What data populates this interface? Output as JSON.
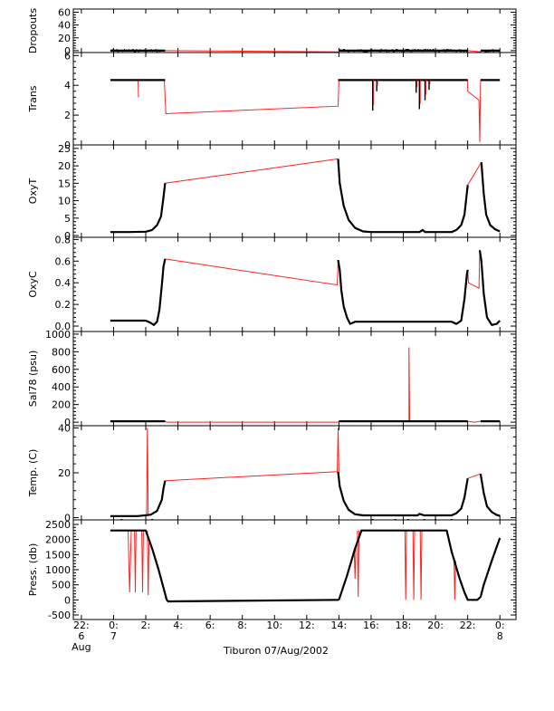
{
  "caption": "Tiburon 07/Aug/2002",
  "time_axis": {
    "ticks": [
      {
        "hour": -2,
        "line1": "22:",
        "line2": "6",
        "line3": "Aug"
      },
      {
        "hour": 0,
        "line1": "0:",
        "line2": "7",
        "line3": ""
      },
      {
        "hour": 2,
        "line1": "2:",
        "line2": "",
        "line3": ""
      },
      {
        "hour": 4,
        "line1": "4:",
        "line2": "",
        "line3": ""
      },
      {
        "hour": 6,
        "line1": "6:",
        "line2": "",
        "line3": ""
      },
      {
        "hour": 8,
        "line1": "8:",
        "line2": "",
        "line3": ""
      },
      {
        "hour": 10,
        "line1": "10:",
        "line2": "",
        "line3": ""
      },
      {
        "hour": 12,
        "line1": "12:",
        "line2": "",
        "line3": ""
      },
      {
        "hour": 14,
        "line1": "14:",
        "line2": "",
        "line3": ""
      },
      {
        "hour": 16,
        "line1": "16:",
        "line2": "",
        "line3": ""
      },
      {
        "hour": 18,
        "line1": "18:",
        "line2": "",
        "line3": ""
      },
      {
        "hour": 20,
        "line1": "20:",
        "line2": "",
        "line3": ""
      },
      {
        "hour": 22,
        "line1": "22:",
        "line2": "",
        "line3": ""
      },
      {
        "hour": 24,
        "line1": "0:",
        "line2": "8",
        "line3": ""
      }
    ]
  },
  "chart_data": [
    {
      "type": "line",
      "ylabel": "Dropouts",
      "ylim": [
        -3,
        65
      ],
      "yticks": [
        {
          "v": 60,
          "t": "60"
        },
        {
          "v": 40,
          "t": "40"
        },
        {
          "v": 20,
          "t": "20"
        },
        {
          "v": 0,
          "t": "0"
        }
      ],
      "black": [
        [
          [
            -0.2,
            0
          ],
          [
            3.2,
            0
          ]
        ],
        [
          [
            14.0,
            0
          ],
          [
            22.0,
            0
          ]
        ],
        [
          [
            22.8,
            0
          ],
          [
            24.0,
            0
          ]
        ]
      ],
      "red": [
        [
          [
            3.2,
            0
          ],
          [
            14.0,
            -2
          ]
        ],
        [
          [
            22.0,
            0
          ],
          [
            22.8,
            -2
          ]
        ]
      ],
      "noise": true
    },
    {
      "type": "line",
      "ylabel": "Trans",
      "ylim": [
        0,
        6.2
      ],
      "yticks": [
        {
          "v": 6,
          "t": "6"
        },
        {
          "v": 4,
          "t": "4"
        },
        {
          "v": 2,
          "t": "2"
        },
        {
          "v": 0,
          "t": "0"
        }
      ],
      "black": [
        [
          [
            -0.2,
            4.35
          ],
          [
            3.2,
            4.35
          ]
        ],
        [
          [
            13.95,
            4.35
          ],
          [
            22.0,
            4.35
          ]
        ],
        [
          [
            22.8,
            4.35
          ],
          [
            24.0,
            4.35
          ]
        ]
      ],
      "red": [
        [
          [
            3.15,
            4.35
          ],
          [
            3.25,
            2.1
          ],
          [
            13.95,
            2.6
          ],
          [
            14.0,
            4.35
          ]
        ],
        [
          [
            22.0,
            4.35
          ],
          [
            22.0,
            3.6
          ],
          [
            22.7,
            3.0
          ],
          [
            22.75,
            0.2
          ],
          [
            22.8,
            4.35
          ]
        ],
        [
          [
            1.52,
            4.35
          ],
          [
            1.55,
            3.2
          ]
        ]
      ],
      "spikes": [
        {
          "x": 16.1,
          "bottom": 2.3
        },
        {
          "x": 16.35,
          "bottom": 3.6
        },
        {
          "x": 18.8,
          "bottom": 3.5
        },
        {
          "x": 19.0,
          "bottom": 2.4
        },
        {
          "x": 19.35,
          "bottom": 3.0
        },
        {
          "x": 19.6,
          "bottom": 3.7
        }
      ]
    },
    {
      "type": "line",
      "ylabel": "OxyT",
      "ylim": [
        -0.5,
        26
      ],
      "yticks": [
        {
          "v": 25,
          "t": "25"
        },
        {
          "v": 20,
          "t": "20"
        },
        {
          "v": 15,
          "t": "15"
        },
        {
          "v": 10,
          "t": "10"
        },
        {
          "v": 5,
          "t": "5"
        },
        {
          "v": 0,
          "t": "0"
        }
      ],
      "black": [
        [
          [
            -0.2,
            1.0
          ],
          [
            1.0,
            1.0
          ],
          [
            2.0,
            1.1
          ],
          [
            2.4,
            1.6
          ],
          [
            2.7,
            3.0
          ],
          [
            2.95,
            5.5
          ],
          [
            3.1,
            11.0
          ],
          [
            3.2,
            15.0
          ]
        ],
        [
          [
            13.95,
            22.0
          ],
          [
            14.05,
            15.0
          ],
          [
            14.3,
            8.5
          ],
          [
            14.6,
            4.5
          ],
          [
            15.0,
            2.2
          ],
          [
            15.5,
            1.2
          ],
          [
            16.0,
            1.0
          ],
          [
            19.0,
            1.0
          ],
          [
            19.2,
            1.6
          ],
          [
            19.35,
            1.0
          ],
          [
            21.0,
            1.0
          ],
          [
            21.3,
            1.6
          ],
          [
            21.6,
            3.0
          ],
          [
            21.8,
            6.0
          ],
          [
            22.0,
            14.5
          ]
        ],
        [
          [
            22.85,
            21.0
          ],
          [
            23.0,
            12.0
          ],
          [
            23.15,
            6.0
          ],
          [
            23.4,
            3.0
          ],
          [
            23.7,
            1.8
          ],
          [
            24.0,
            1.2
          ]
        ]
      ],
      "red": [
        [
          [
            3.2,
            15.0
          ],
          [
            13.95,
            22.0
          ]
        ],
        [
          [
            22.0,
            14.5
          ],
          [
            22.85,
            21.0
          ]
        ]
      ]
    },
    {
      "type": "line",
      "ylabel": "OxyC",
      "ylim": [
        -0.05,
        0.82
      ],
      "yticks": [
        {
          "v": 0.8,
          "t": "0.8"
        },
        {
          "v": 0.6,
          "t": "0.6"
        },
        {
          "v": 0.4,
          "t": "0.4"
        },
        {
          "v": 0.2,
          "t": "0.2"
        },
        {
          "v": 0.0,
          "t": "0.0"
        }
      ],
      "black": [
        [
          [
            -0.2,
            0.05
          ],
          [
            2.0,
            0.05
          ],
          [
            2.3,
            0.03
          ],
          [
            2.5,
            0.01
          ],
          [
            2.7,
            0.04
          ],
          [
            2.85,
            0.15
          ],
          [
            3.0,
            0.38
          ],
          [
            3.1,
            0.55
          ],
          [
            3.2,
            0.62
          ]
        ],
        [
          [
            13.95,
            0.61
          ],
          [
            14.05,
            0.52
          ],
          [
            14.15,
            0.33
          ],
          [
            14.3,
            0.18
          ],
          [
            14.5,
            0.08
          ],
          [
            14.7,
            0.02
          ],
          [
            15.0,
            0.04
          ],
          [
            19.0,
            0.04
          ],
          [
            21.0,
            0.04
          ],
          [
            21.3,
            0.02
          ],
          [
            21.6,
            0.05
          ],
          [
            21.8,
            0.25
          ],
          [
            21.95,
            0.48
          ],
          [
            22.0,
            0.52
          ]
        ],
        [
          [
            22.75,
            0.7
          ],
          [
            22.85,
            0.6
          ],
          [
            23.0,
            0.3
          ],
          [
            23.2,
            0.08
          ],
          [
            23.5,
            0.01
          ],
          [
            23.8,
            0.02
          ],
          [
            24.0,
            0.05
          ]
        ]
      ],
      "red": [
        [
          [
            3.2,
            0.62
          ],
          [
            13.9,
            0.38
          ],
          [
            13.95,
            0.61
          ]
        ],
        [
          [
            22.0,
            0.52
          ],
          [
            22.05,
            0.4
          ],
          [
            22.7,
            0.35
          ],
          [
            22.75,
            0.7
          ]
        ]
      ]
    },
    {
      "type": "line",
      "ylabel": "Sal78 (psu)",
      "ylim": [
        -40,
        1030
      ],
      "yticks": [
        {
          "v": 1000,
          "t": "1000"
        },
        {
          "v": 800,
          "t": "800"
        },
        {
          "v": 600,
          "t": "600"
        },
        {
          "v": 400,
          "t": "400"
        },
        {
          "v": 200,
          "t": "200"
        },
        {
          "v": 0,
          "t": "0"
        }
      ],
      "black": [
        [
          [
            -0.2,
            10
          ],
          [
            3.2,
            10
          ]
        ],
        [
          [
            14.0,
            10
          ],
          [
            22.0,
            10
          ]
        ],
        [
          [
            22.8,
            10
          ],
          [
            24.0,
            10
          ]
        ]
      ],
      "red": [
        [
          [
            3.2,
            10
          ],
          [
            3.3,
            0
          ],
          [
            14.0,
            0
          ],
          [
            14.0,
            10
          ]
        ],
        [
          [
            18.35,
            10
          ],
          [
            18.35,
            850
          ],
          [
            18.4,
            10
          ]
        ],
        [
          [
            22.0,
            10
          ],
          [
            22.4,
            0
          ],
          [
            22.8,
            10
          ]
        ]
      ]
    },
    {
      "type": "line",
      "ylabel": "Temp. (C)",
      "ylim": [
        -1,
        41
      ],
      "yticks": [
        {
          "v": 40,
          "t": "40"
        },
        {
          "v": 20,
          "t": "20"
        },
        {
          "v": 0,
          "t": "0"
        }
      ],
      "black": [
        [
          [
            -0.2,
            0.7
          ],
          [
            1.5,
            0.7
          ],
          [
            2.3,
            1.3
          ],
          [
            2.7,
            3.0
          ],
          [
            3.0,
            8.0
          ],
          [
            3.1,
            13.0
          ],
          [
            3.2,
            16.5
          ]
        ],
        [
          [
            13.95,
            20.5
          ],
          [
            14.05,
            14.0
          ],
          [
            14.3,
            7.5
          ],
          [
            14.6,
            3.5
          ],
          [
            15.0,
            1.5
          ],
          [
            15.5,
            1.0
          ],
          [
            18.9,
            1.0
          ],
          [
            19.0,
            1.7
          ],
          [
            19.3,
            1.0
          ],
          [
            21.0,
            1.0
          ],
          [
            21.3,
            2.0
          ],
          [
            21.6,
            4.0
          ],
          [
            21.8,
            9.0
          ],
          [
            22.0,
            17.5
          ]
        ],
        [
          [
            22.8,
            19.5
          ],
          [
            23.0,
            11.0
          ],
          [
            23.2,
            5.0
          ],
          [
            23.5,
            2.5
          ],
          [
            23.8,
            1.2
          ],
          [
            24.0,
            0.8
          ]
        ]
      ],
      "red": [
        [
          [
            2.05,
            0.7
          ],
          [
            2.1,
            40.0
          ],
          [
            2.15,
            0.7
          ]
        ],
        [
          [
            3.2,
            16.5
          ],
          [
            13.9,
            20.5
          ],
          [
            13.95,
            40.0
          ],
          [
            14.0,
            20.5
          ]
        ],
        [
          [
            22.0,
            17.5
          ],
          [
            22.8,
            19.5
          ]
        ]
      ],
      "dots": [
        0.5,
        2.4,
        16.1,
        17.5,
        18.3,
        19.3,
        20.0,
        21.0
      ]
    },
    {
      "type": "line",
      "ylabel": "Press. (db)",
      "ylim": [
        -650,
        2650
      ],
      "yticks": [
        {
          "v": 2500,
          "t": "2500"
        },
        {
          "v": 2000,
          "t": "2000"
        },
        {
          "v": 1500,
          "t": "1500"
        },
        {
          "v": 1000,
          "t": "1000"
        },
        {
          "v": 500,
          "t": "500"
        },
        {
          "v": 0,
          "t": "0"
        },
        {
          "v": -500,
          "t": "-500"
        }
      ],
      "black": [
        [
          [
            -0.2,
            2300
          ],
          [
            2.0,
            2300
          ],
          [
            2.4,
            1700
          ],
          [
            2.8,
            1000
          ],
          [
            3.1,
            400
          ],
          [
            3.2,
            200
          ],
          [
            3.3,
            0
          ]
        ],
        [
          [
            14.0,
            0
          ],
          [
            14.5,
            800
          ],
          [
            15.0,
            1700
          ],
          [
            15.4,
            2300
          ],
          [
            20.7,
            2300
          ],
          [
            21.0,
            1600
          ],
          [
            21.5,
            700
          ],
          [
            21.8,
            250
          ],
          [
            22.0,
            0
          ],
          [
            22.6,
            0
          ],
          [
            22.8,
            100
          ],
          [
            23.0,
            500
          ],
          [
            23.5,
            1300
          ],
          [
            24.0,
            2050
          ]
        ],
        [
          [
            3.3,
            0
          ],
          [
            3.4,
            -50
          ],
          [
            14.0,
            0
          ]
        ]
      ],
      "red": [
        [
          [
            0.9,
            2300
          ],
          [
            1.0,
            250
          ],
          [
            1.1,
            2300
          ]
        ],
        [
          [
            1.3,
            2300
          ],
          [
            1.35,
            250
          ],
          [
            1.4,
            2300
          ]
        ],
        [
          [
            1.75,
            2300
          ],
          [
            1.8,
            250
          ],
          [
            1.85,
            2300
          ]
        ],
        [
          [
            2.1,
            2300
          ],
          [
            2.15,
            150
          ],
          [
            2.2,
            1900
          ]
        ],
        [
          [
            14.95,
            1650
          ],
          [
            15.0,
            700
          ],
          [
            15.05,
            1700
          ]
        ],
        [
          [
            15.15,
            2300
          ],
          [
            15.2,
            100
          ],
          [
            15.25,
            2300
          ]
        ],
        [
          [
            18.1,
            2300
          ],
          [
            18.15,
            0
          ],
          [
            18.2,
            2300
          ]
        ],
        [
          [
            18.6,
            2300
          ],
          [
            18.65,
            0
          ],
          [
            18.7,
            2300
          ]
        ],
        [
          [
            19.05,
            2300
          ],
          [
            19.1,
            0
          ],
          [
            19.15,
            2300
          ]
        ],
        [
          [
            21.15,
            1400
          ],
          [
            21.2,
            0
          ],
          [
            21.25,
            1300
          ]
        ]
      ]
    }
  ]
}
